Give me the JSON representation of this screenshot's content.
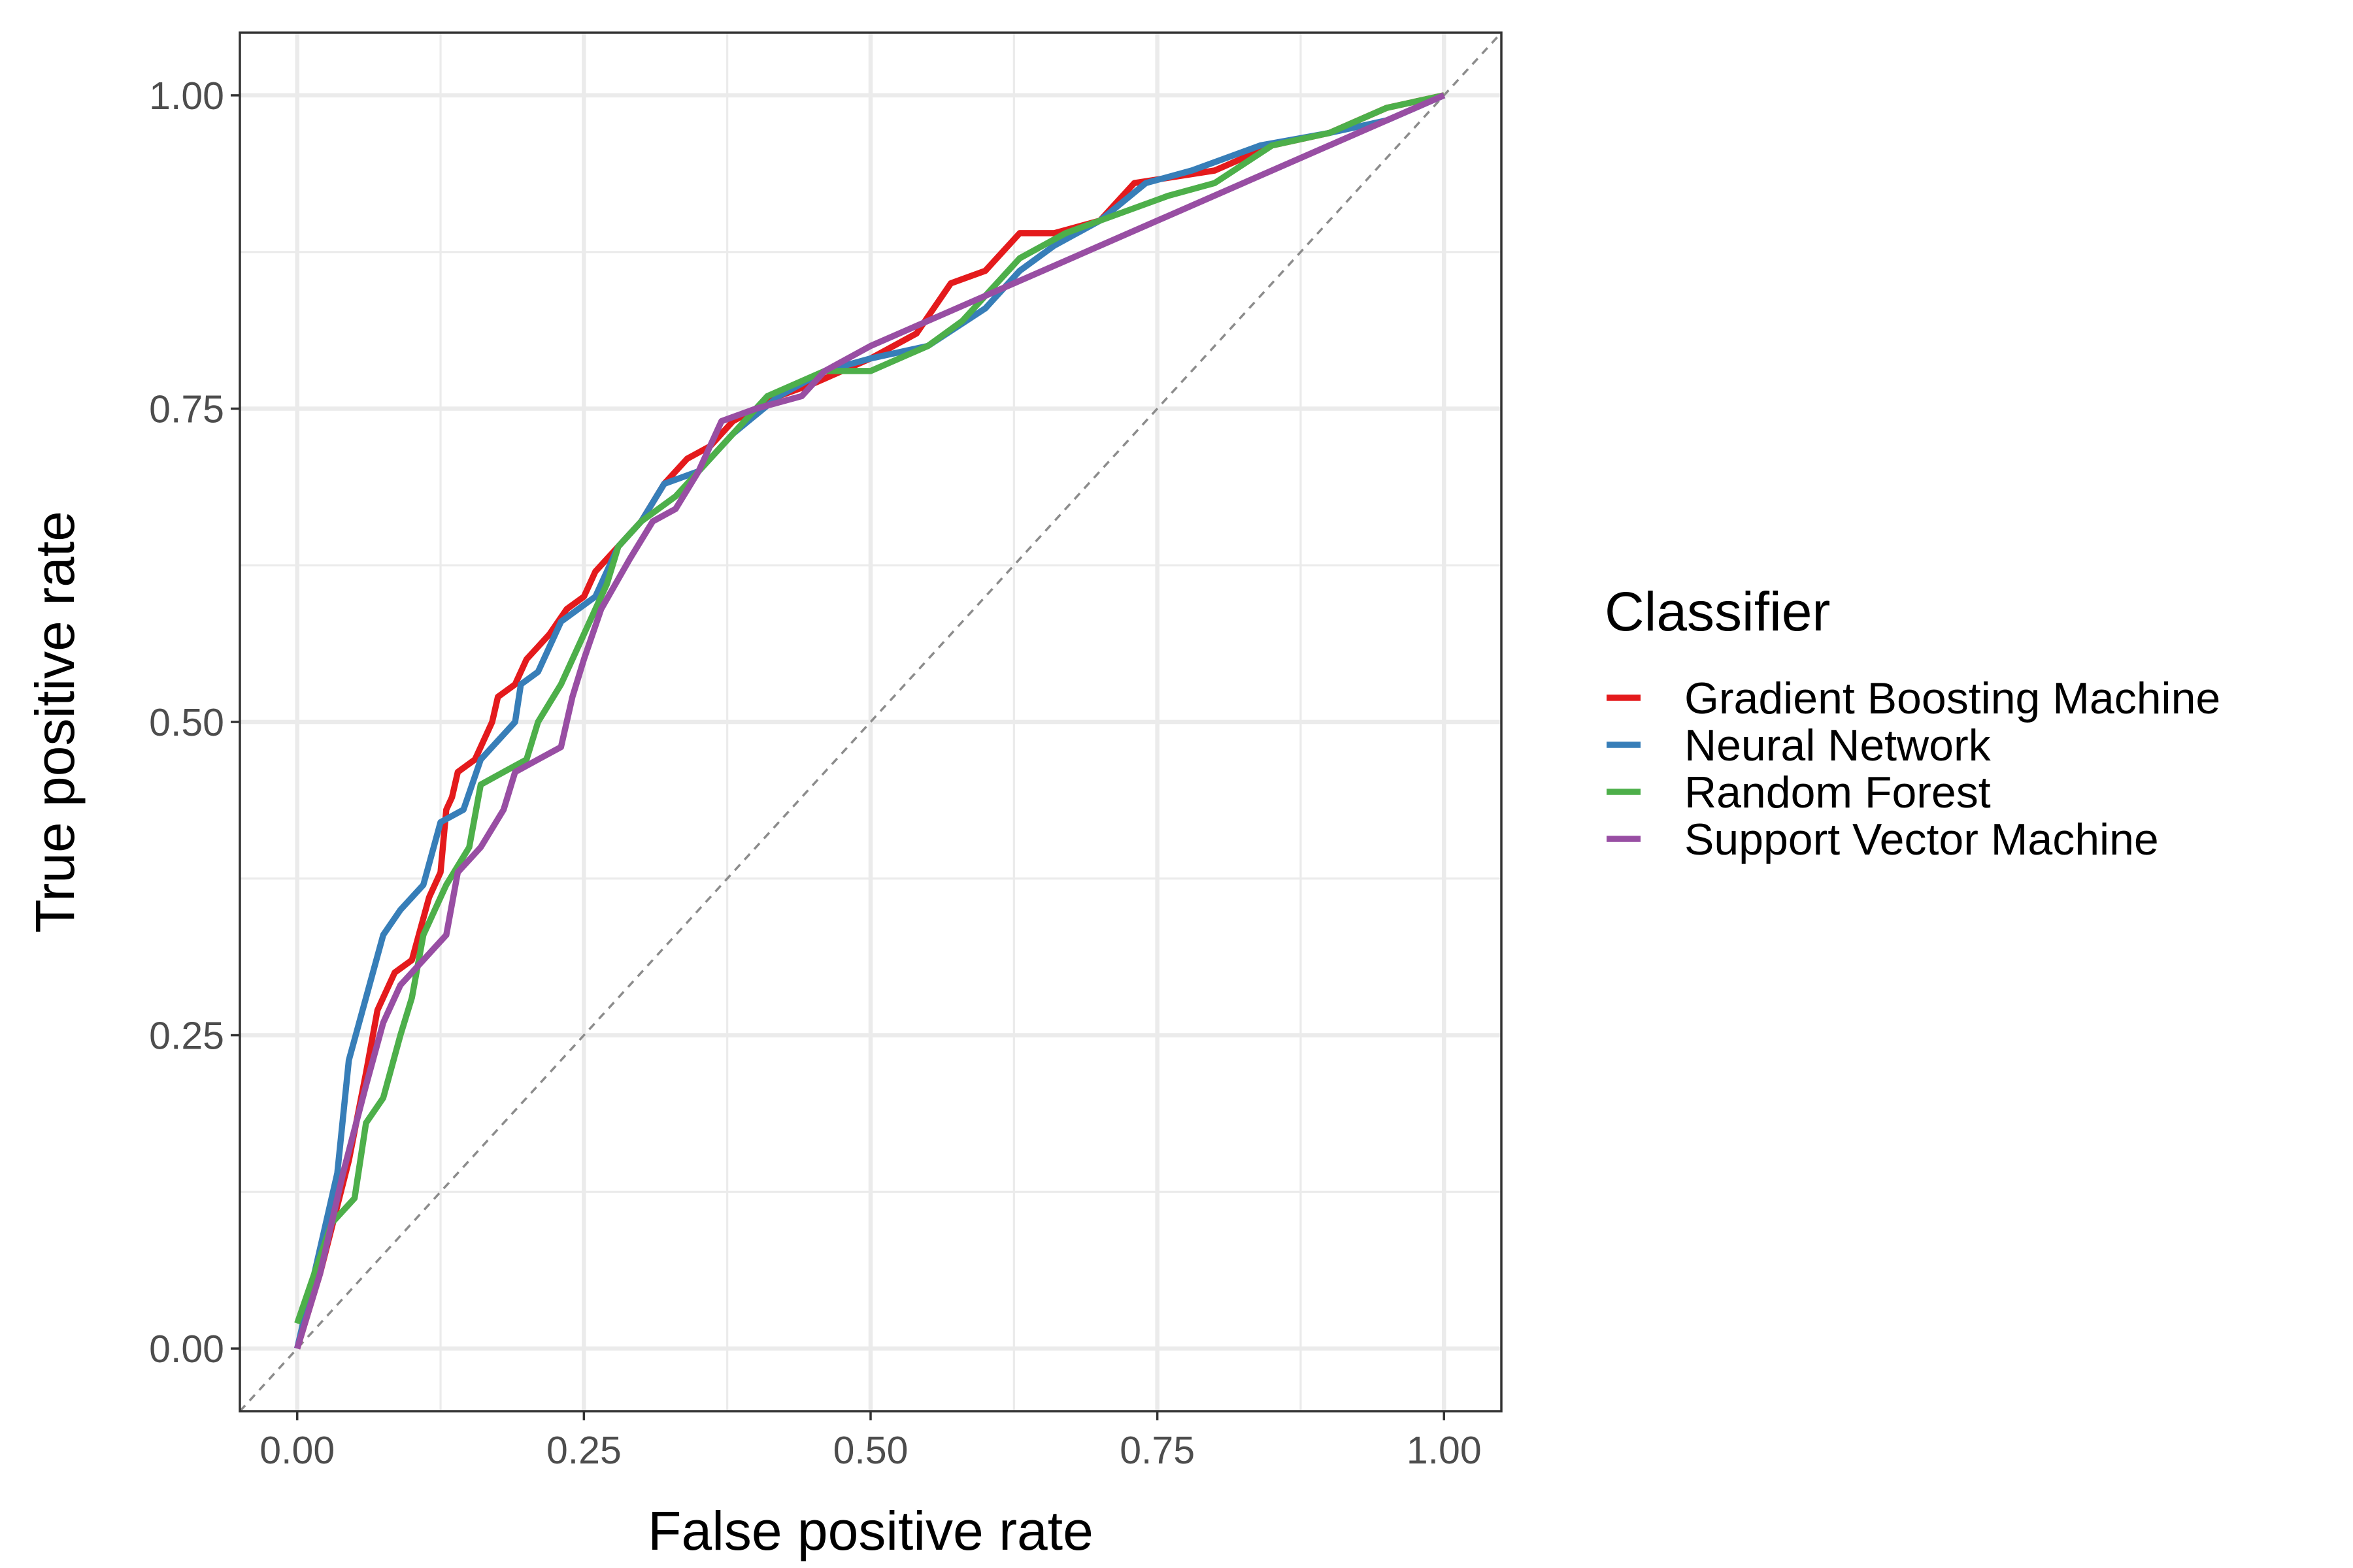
{
  "chart_data": {
    "type": "line",
    "xlabel": "False positive rate",
    "ylabel": "True positive rate",
    "xlim": [
      -0.05,
      1.05
    ],
    "ylim": [
      -0.05,
      1.05
    ],
    "x_ticks": [
      0,
      0.25,
      0.5,
      0.75,
      1
    ],
    "y_ticks": [
      0,
      0.25,
      0.5,
      0.75,
      1
    ],
    "x_tick_labels": [
      "0.00",
      "0.25",
      "0.50",
      "0.75",
      "1.00"
    ],
    "y_tick_labels": [
      "0.00",
      "0.25",
      "0.50",
      "0.75",
      "1.00"
    ],
    "grid": true,
    "reference_line": {
      "x": [
        -0.05,
        1.05
      ],
      "y": [
        -0.05,
        1.05
      ],
      "style": "dashed",
      "color": "#8c8c8c"
    },
    "legend": {
      "title": "Classifier",
      "position": "right"
    },
    "series": [
      {
        "name": "Gradient Boosting Machine",
        "color": "#e41a1c",
        "points": [
          [
            0,
            0
          ],
          [
            0.02,
            0.06
          ],
          [
            0.045,
            0.15
          ],
          [
            0.06,
            0.22
          ],
          [
            0.07,
            0.27
          ],
          [
            0.085,
            0.3
          ],
          [
            0.1,
            0.31
          ],
          [
            0.115,
            0.36
          ],
          [
            0.125,
            0.38
          ],
          [
            0.13,
            0.43
          ],
          [
            0.135,
            0.44
          ],
          [
            0.14,
            0.46
          ],
          [
            0.155,
            0.47
          ],
          [
            0.17,
            0.5
          ],
          [
            0.175,
            0.52
          ],
          [
            0.19,
            0.53
          ],
          [
            0.2,
            0.55
          ],
          [
            0.21,
            0.56
          ],
          [
            0.22,
            0.57
          ],
          [
            0.235,
            0.59
          ],
          [
            0.25,
            0.6
          ],
          [
            0.26,
            0.62
          ],
          [
            0.28,
            0.64
          ],
          [
            0.3,
            0.66
          ],
          [
            0.32,
            0.69
          ],
          [
            0.34,
            0.71
          ],
          [
            0.36,
            0.72
          ],
          [
            0.38,
            0.74
          ],
          [
            0.4,
            0.75
          ],
          [
            0.42,
            0.76
          ],
          [
            0.45,
            0.77
          ],
          [
            0.5,
            0.79
          ],
          [
            0.54,
            0.81
          ],
          [
            0.57,
            0.85
          ],
          [
            0.6,
            0.86
          ],
          [
            0.63,
            0.89
          ],
          [
            0.66,
            0.89
          ],
          [
            0.7,
            0.9
          ],
          [
            0.73,
            0.93
          ],
          [
            0.8,
            0.94
          ],
          [
            0.85,
            0.96
          ],
          [
            0.9,
            0.97
          ],
          [
            0.95,
            0.99
          ],
          [
            1,
            1
          ]
        ]
      },
      {
        "name": "Neural Network",
        "color": "#377eb8",
        "points": [
          [
            0,
            0
          ],
          [
            0.035,
            0.14
          ],
          [
            0.045,
            0.23
          ],
          [
            0.06,
            0.28
          ],
          [
            0.075,
            0.33
          ],
          [
            0.09,
            0.35
          ],
          [
            0.11,
            0.37
          ],
          [
            0.125,
            0.42
          ],
          [
            0.145,
            0.43
          ],
          [
            0.16,
            0.47
          ],
          [
            0.19,
            0.5
          ],
          [
            0.195,
            0.53
          ],
          [
            0.21,
            0.54
          ],
          [
            0.23,
            0.58
          ],
          [
            0.26,
            0.6
          ],
          [
            0.28,
            0.64
          ],
          [
            0.3,
            0.66
          ],
          [
            0.32,
            0.69
          ],
          [
            0.35,
            0.7
          ],
          [
            0.38,
            0.73
          ],
          [
            0.42,
            0.76
          ],
          [
            0.46,
            0.78
          ],
          [
            0.5,
            0.79
          ],
          [
            0.55,
            0.8
          ],
          [
            0.6,
            0.83
          ],
          [
            0.63,
            0.86
          ],
          [
            0.66,
            0.88
          ],
          [
            0.7,
            0.9
          ],
          [
            0.74,
            0.93
          ],
          [
            0.78,
            0.94
          ],
          [
            0.84,
            0.96
          ],
          [
            0.9,
            0.97
          ],
          [
            0.95,
            0.98
          ],
          [
            1,
            1
          ]
        ]
      },
      {
        "name": "Random Forest",
        "color": "#4daf4a",
        "points": [
          [
            0,
            0.02
          ],
          [
            0.03,
            0.1
          ],
          [
            0.05,
            0.12
          ],
          [
            0.06,
            0.18
          ],
          [
            0.075,
            0.2
          ],
          [
            0.09,
            0.25
          ],
          [
            0.1,
            0.28
          ],
          [
            0.11,
            0.33
          ],
          [
            0.13,
            0.37
          ],
          [
            0.15,
            0.4
          ],
          [
            0.16,
            0.45
          ],
          [
            0.18,
            0.46
          ],
          [
            0.2,
            0.47
          ],
          [
            0.21,
            0.5
          ],
          [
            0.23,
            0.53
          ],
          [
            0.245,
            0.56
          ],
          [
            0.26,
            0.59
          ],
          [
            0.27,
            0.61
          ],
          [
            0.28,
            0.64
          ],
          [
            0.3,
            0.66
          ],
          [
            0.33,
            0.68
          ],
          [
            0.36,
            0.71
          ],
          [
            0.38,
            0.73
          ],
          [
            0.41,
            0.76
          ],
          [
            0.46,
            0.78
          ],
          [
            0.5,
            0.78
          ],
          [
            0.55,
            0.8
          ],
          [
            0.58,
            0.82
          ],
          [
            0.6,
            0.84
          ],
          [
            0.63,
            0.87
          ],
          [
            0.67,
            0.89
          ],
          [
            0.7,
            0.9
          ],
          [
            0.76,
            0.92
          ],
          [
            0.8,
            0.93
          ],
          [
            0.85,
            0.96
          ],
          [
            0.9,
            0.97
          ],
          [
            0.95,
            0.99
          ],
          [
            1,
            1
          ]
        ]
      },
      {
        "name": "Support Vector Machine",
        "color": "#984ea3",
        "points": [
          [
            0,
            0
          ],
          [
            0.02,
            0.06
          ],
          [
            0.04,
            0.14
          ],
          [
            0.06,
            0.21
          ],
          [
            0.075,
            0.26
          ],
          [
            0.09,
            0.29
          ],
          [
            0.11,
            0.31
          ],
          [
            0.13,
            0.33
          ],
          [
            0.14,
            0.38
          ],
          [
            0.16,
            0.4
          ],
          [
            0.18,
            0.43
          ],
          [
            0.19,
            0.46
          ],
          [
            0.21,
            0.47
          ],
          [
            0.23,
            0.48
          ],
          [
            0.24,
            0.52
          ],
          [
            0.25,
            0.55
          ],
          [
            0.265,
            0.59
          ],
          [
            0.29,
            0.63
          ],
          [
            0.31,
            0.66
          ],
          [
            0.33,
            0.67
          ],
          [
            0.35,
            0.7
          ],
          [
            0.37,
            0.74
          ],
          [
            0.4,
            0.75
          ],
          [
            0.44,
            0.76
          ],
          [
            0.46,
            0.78
          ],
          [
            0.5,
            0.8
          ],
          [
            0.55,
            0.82
          ],
          [
            0.6,
            0.84
          ],
          [
            0.65,
            0.86
          ],
          [
            0.7,
            0.88
          ],
          [
            0.8,
            0.92
          ],
          [
            0.9,
            0.96
          ],
          [
            1,
            1
          ]
        ]
      }
    ]
  }
}
